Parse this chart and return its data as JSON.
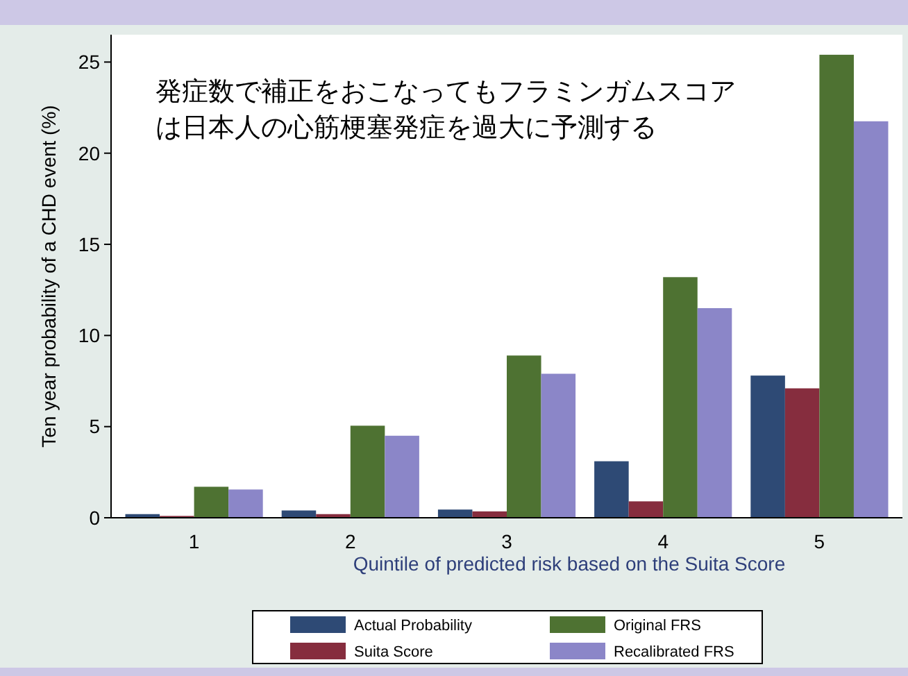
{
  "chart_data": {
    "type": "bar",
    "title": "発症数で補正をおこなってもフラミンガムスコアは日本人の心筋梗塞発症を過大に予測する",
    "xlabel": "Quintile of predicted risk based on the Suita Score",
    "ylabel": "Ten year probability of a CHD event (%)",
    "categories": [
      "1",
      "2",
      "3",
      "4",
      "5"
    ],
    "series": [
      {
        "name": "Actual Probability",
        "color": "#2e4a75",
        "values": [
          0.2,
          0.4,
          0.45,
          3.1,
          7.8
        ]
      },
      {
        "name": "Suita Score",
        "color": "#862d3e",
        "values": [
          0.1,
          0.2,
          0.35,
          0.9,
          7.1
        ]
      },
      {
        "name": "Original FRS",
        "color": "#4e7232",
        "values": [
          1.7,
          5.05,
          8.9,
          13.2,
          25.4
        ]
      },
      {
        "name": "Recalibrated FRS",
        "color": "#8b86c8",
        "values": [
          1.55,
          4.5,
          7.9,
          11.5,
          21.75
        ]
      }
    ],
    "ylim": [
      0,
      26.5
    ],
    "yticks": [
      0,
      5,
      10,
      15,
      20,
      25
    ],
    "grid": false,
    "legend": "bottom"
  }
}
